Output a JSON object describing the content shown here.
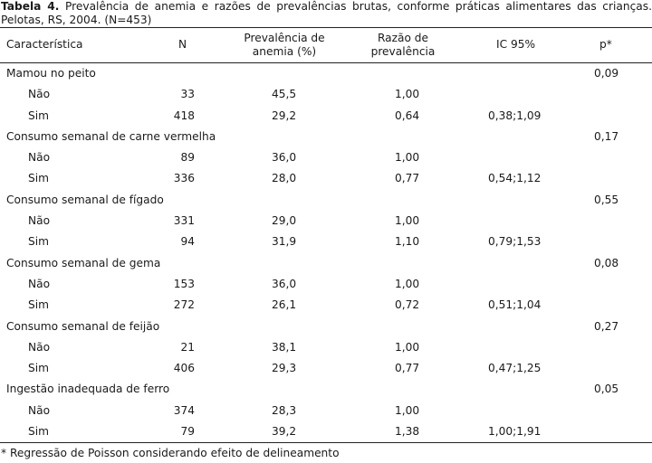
{
  "caption": {
    "label": "Tabela 4.",
    "text": " Prevalência de anemia e razões de prevalências brutas, conforme práticas alimentares das crianças. Pelotas, RS, 2004. (N=453)"
  },
  "headers": {
    "caracteristica": "Característica",
    "n": "N",
    "prevalencia_l1": "Prevalência de",
    "prevalencia_l2": "anemia (%)",
    "razao_l1": "Razão de",
    "razao_l2": "prevalência",
    "ic": "IC 95%",
    "p": "p*"
  },
  "groups": [
    {
      "label": "Mamou no peito",
      "p": "0,09",
      "rows": [
        {
          "cat": "Não",
          "n": "33",
          "prev": "45,5",
          "rp": "1,00",
          "ic": ""
        },
        {
          "cat": "Sim",
          "n": "418",
          "prev": "29,2",
          "rp": "0,64",
          "ic": "0,38;1,09"
        }
      ]
    },
    {
      "label": "Consumo semanal de carne vermelha",
      "p": "0,17",
      "rows": [
        {
          "cat": "Não",
          "n": "89",
          "prev": "36,0",
          "rp": "1,00",
          "ic": ""
        },
        {
          "cat": "Sim",
          "n": "336",
          "prev": "28,0",
          "rp": "0,77",
          "ic": "0,54;1,12"
        }
      ]
    },
    {
      "label": "Consumo semanal de fígado",
      "p": "0,55",
      "rows": [
        {
          "cat": "Não",
          "n": "331",
          "prev": "29,0",
          "rp": "1,00",
          "ic": ""
        },
        {
          "cat": "Sim",
          "n": "94",
          "prev": "31,9",
          "rp": "1,10",
          "ic": "0,79;1,53"
        }
      ]
    },
    {
      "label": "Consumo semanal de gema",
      "p": "0,08",
      "rows": [
        {
          "cat": "Não",
          "n": "153",
          "prev": "36,0",
          "rp": "1,00",
          "ic": ""
        },
        {
          "cat": "Sim",
          "n": "272",
          "prev": "26,1",
          "rp": "0,72",
          "ic": "0,51;1,04"
        }
      ]
    },
    {
      "label": "Consumo semanal de feijão",
      "p": "0,27",
      "rows": [
        {
          "cat": "Não",
          "n": "21",
          "prev": "38,1",
          "rp": "1,00",
          "ic": ""
        },
        {
          "cat": "Sim",
          "n": "406",
          "prev": "29,3",
          "rp": "0,77",
          "ic": "0,47;1,25"
        }
      ]
    },
    {
      "label": "Ingestão inadequada de ferro",
      "p": "0,05",
      "rows": [
        {
          "cat": "Não",
          "n": "374",
          "prev": "28,3",
          "rp": "1,00",
          "ic": ""
        },
        {
          "cat": "Sim",
          "n": "79",
          "prev": "39,2",
          "rp": "1,38",
          "ic": "1,00;1,91"
        }
      ]
    }
  ],
  "footnote": "* Regressão de Poisson considerando efeito de delineamento"
}
